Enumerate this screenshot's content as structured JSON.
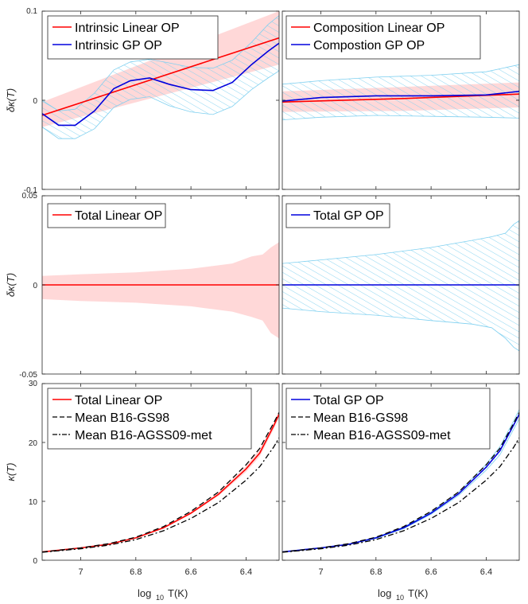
{
  "colors": {
    "linear": "#ff0000",
    "gp": "#0000dd",
    "linear_band": "#ffd6d6",
    "gp_hatch": "#7fd0f0",
    "mean": "#000000",
    "axis": "#262626"
  },
  "figure": {
    "xlabel_main": "log",
    "xlabel_sub": "10",
    "xlabel_tail": "T(K)",
    "x_ticks": [
      "7",
      "6.8",
      "6.6",
      "6.4"
    ],
    "x_tick_values": [
      7.0,
      6.8,
      6.6,
      6.4
    ],
    "xlim_reversed": [
      7.14,
      6.28
    ]
  },
  "chart_data": [
    {
      "id": "top-left",
      "type": "line",
      "ylabel": "δκ(T)",
      "ylim": [
        -0.1,
        0.1
      ],
      "y_ticks": [
        "0.1",
        "0",
        "-0.1"
      ],
      "y_tick_values": [
        0.1,
        0,
        -0.1
      ],
      "legend": [
        "Intrinsic Linear OP",
        "Intrinsic GP OP"
      ],
      "series": [
        {
          "name": "Intrinsic Linear OP",
          "style": "linear",
          "x": [
            7.14,
            6.28
          ],
          "y": [
            -0.017,
            0.07
          ],
          "band_upper": [
            -0.002,
            0.1
          ],
          "band_lower": [
            -0.03,
            0.04
          ]
        },
        {
          "name": "Intrinsic GP OP",
          "style": "gp",
          "x": [
            7.14,
            7.08,
            7.02,
            6.95,
            6.88,
            6.82,
            6.75,
            6.68,
            6.6,
            6.52,
            6.45,
            6.38,
            6.32,
            6.28
          ],
          "y": [
            -0.015,
            -0.028,
            -0.028,
            -0.012,
            0.013,
            0.022,
            0.025,
            0.018,
            0.012,
            0.011,
            0.02,
            0.04,
            0.055,
            0.064
          ],
          "band_upper": [
            0.0,
            -0.012,
            -0.01,
            0.008,
            0.034,
            0.043,
            0.046,
            0.042,
            0.037,
            0.036,
            0.045,
            0.065,
            0.085,
            0.095
          ],
          "band_lower": [
            -0.03,
            -0.043,
            -0.043,
            -0.032,
            -0.008,
            0.001,
            0.004,
            -0.006,
            -0.013,
            -0.016,
            -0.007,
            0.012,
            0.025,
            0.033
          ]
        }
      ]
    },
    {
      "id": "top-right",
      "type": "line",
      "ylabel": "",
      "ylim": [
        -0.1,
        0.1
      ],
      "legend": [
        "Composition Linear OP",
        "Compostion GP OP"
      ],
      "series": [
        {
          "name": "Composition Linear OP",
          "style": "linear",
          "x": [
            7.14,
            6.7,
            6.28
          ],
          "y": [
            -0.002,
            0.002,
            0.007
          ],
          "band_upper": [
            0.01,
            0.015,
            0.02
          ],
          "band_lower": [
            -0.013,
            -0.012,
            -0.008
          ]
        },
        {
          "name": "Compostion GP OP",
          "style": "gp",
          "x": [
            7.14,
            7.0,
            6.8,
            6.6,
            6.4,
            6.28
          ],
          "y": [
            -0.001,
            0.003,
            0.005,
            0.005,
            0.006,
            0.01
          ],
          "band_upper": [
            0.018,
            0.022,
            0.026,
            0.028,
            0.032,
            0.04
          ],
          "band_lower": [
            -0.022,
            -0.019,
            -0.017,
            -0.018,
            -0.019,
            -0.02
          ]
        }
      ]
    },
    {
      "id": "mid-left",
      "type": "line",
      "ylabel": "δκ(T)",
      "ylim": [
        -0.05,
        0.05
      ],
      "y_ticks": [
        "0.05",
        "0",
        "-0.05"
      ],
      "y_tick_values": [
        0.05,
        0,
        -0.05
      ],
      "legend": [
        "Total Linear OP"
      ],
      "series": [
        {
          "name": "Total Linear OP",
          "style": "linear",
          "x": [
            7.14,
            7.0,
            6.8,
            6.6,
            6.45,
            6.38,
            6.34,
            6.31,
            6.28
          ],
          "y": [
            0,
            0,
            0,
            0,
            0,
            0,
            0,
            0,
            0
          ],
          "band_upper": [
            0.005,
            0.006,
            0.007,
            0.009,
            0.012,
            0.016,
            0.017,
            0.021,
            0.024
          ],
          "band_lower": [
            -0.008,
            -0.009,
            -0.01,
            -0.012,
            -0.015,
            -0.018,
            -0.02,
            -0.027,
            -0.03
          ]
        }
      ]
    },
    {
      "id": "mid-right",
      "type": "line",
      "ylabel": "",
      "ylim": [
        -0.05,
        0.05
      ],
      "legend": [
        "Total GP OP"
      ],
      "series": [
        {
          "name": "Total GP OP",
          "style": "gp",
          "x": [
            7.14,
            7.0,
            6.8,
            6.6,
            6.45,
            6.38,
            6.33,
            6.3,
            6.28
          ],
          "y": [
            0,
            0,
            0,
            0,
            0,
            0,
            0,
            0,
            0
          ],
          "band_upper": [
            0.012,
            0.014,
            0.017,
            0.021,
            0.025,
            0.027,
            0.029,
            0.034,
            0.036
          ],
          "band_lower": [
            -0.013,
            -0.015,
            -0.017,
            -0.02,
            -0.022,
            -0.024,
            -0.03,
            -0.035,
            -0.037
          ]
        }
      ]
    },
    {
      "id": "bottom-left",
      "type": "line",
      "ylabel": "κ(T)",
      "ylim": [
        0,
        30
      ],
      "y_ticks": [
        "30",
        "20",
        "10",
        "0"
      ],
      "y_tick_values": [
        30,
        20,
        10,
        0
      ],
      "legend": [
        "Total Linear OP",
        "Mean B16-GS98",
        "Mean B16-AGSS09-met"
      ],
      "series": [
        {
          "name": "Total Linear OP",
          "style": "linear",
          "x": [
            7.14,
            7.0,
            6.9,
            6.8,
            6.7,
            6.6,
            6.5,
            6.4,
            6.35,
            6.3,
            6.28
          ],
          "y": [
            1.4,
            2.1,
            2.7,
            3.8,
            5.5,
            8.0,
            11.2,
            15.5,
            18.2,
            22.8,
            24.8
          ],
          "band_upper": [
            1.45,
            2.15,
            2.75,
            3.9,
            5.65,
            8.2,
            11.5,
            16.0,
            18.9,
            23.3,
            25.4
          ],
          "band_lower": [
            1.35,
            2.05,
            2.65,
            3.7,
            5.35,
            7.8,
            10.9,
            15.0,
            17.6,
            22.2,
            24.2
          ]
        },
        {
          "name": "Mean B16-GS98",
          "style": "dashed",
          "x": [
            7.14,
            7.0,
            6.9,
            6.8,
            6.7,
            6.6,
            6.5,
            6.4,
            6.35,
            6.3,
            6.28
          ],
          "y": [
            1.4,
            2.1,
            2.8,
            3.9,
            5.7,
            8.3,
            11.6,
            16.2,
            19.0,
            23.3,
            25.1
          ]
        },
        {
          "name": "Mean B16-AGSS09-met",
          "style": "dashdot",
          "x": [
            7.14,
            7.0,
            6.9,
            6.8,
            6.7,
            6.6,
            6.5,
            6.4,
            6.35,
            6.3,
            6.28
          ],
          "y": [
            1.35,
            1.95,
            2.55,
            3.5,
            5.0,
            7.1,
            9.8,
            13.6,
            15.9,
            19.2,
            20.8
          ]
        }
      ]
    },
    {
      "id": "bottom-right",
      "type": "line",
      "ylabel": "",
      "ylim": [
        0,
        30
      ],
      "legend": [
        "Total GP OP",
        "Mean B16-GS98",
        "Mean B16-AGSS09-met"
      ],
      "series": [
        {
          "name": "Total GP OP",
          "style": "gp",
          "x": [
            7.14,
            7.0,
            6.9,
            6.8,
            6.7,
            6.6,
            6.5,
            6.4,
            6.35,
            6.3,
            6.28
          ],
          "y": [
            1.4,
            2.1,
            2.7,
            3.8,
            5.5,
            8.0,
            11.3,
            15.8,
            18.6,
            23.0,
            24.8
          ],
          "band_upper": [
            1.45,
            2.15,
            2.75,
            3.9,
            5.65,
            8.2,
            11.6,
            16.3,
            19.3,
            23.7,
            25.6
          ],
          "band_lower": [
            1.35,
            2.05,
            2.65,
            3.7,
            5.35,
            7.8,
            11.0,
            15.3,
            17.9,
            22.3,
            24.0
          ]
        },
        {
          "name": "Mean B16-GS98",
          "style": "dashed",
          "x": [
            7.14,
            7.0,
            6.9,
            6.8,
            6.7,
            6.6,
            6.5,
            6.4,
            6.35,
            6.3,
            6.28
          ],
          "y": [
            1.4,
            2.1,
            2.8,
            3.9,
            5.7,
            8.3,
            11.6,
            16.2,
            19.0,
            23.3,
            25.1
          ]
        },
        {
          "name": "Mean B16-AGSS09-met",
          "style": "dashdot",
          "x": [
            7.14,
            7.0,
            6.9,
            6.8,
            6.7,
            6.6,
            6.5,
            6.4,
            6.35,
            6.3,
            6.28
          ],
          "y": [
            1.35,
            1.95,
            2.55,
            3.5,
            5.0,
            7.1,
            9.8,
            13.6,
            15.9,
            19.2,
            20.8
          ]
        }
      ]
    }
  ]
}
